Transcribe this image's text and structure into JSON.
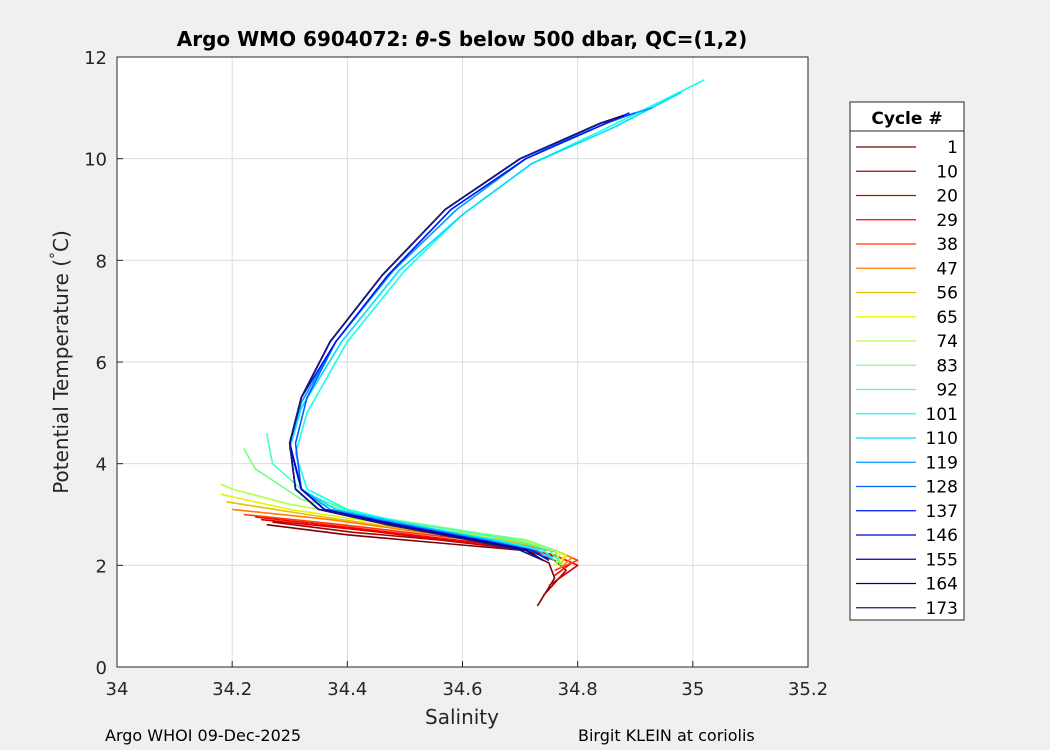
{
  "footer": {
    "left": "Argo WHOI 09-Dec-2025",
    "right": "Birgit KLEIN at coriolis"
  },
  "chart_data": {
    "type": "line",
    "title_prefix": "Argo WMO 6904072: ",
    "title_theta": "θ",
    "title_suffix": "-S below 500 dbar,  QC=(1,2)",
    "xlabel": "Salinity",
    "ylabel_prefix": "Potential Temperature (",
    "ylabel_degree": "°",
    "ylabel_suffix": "C)",
    "xlim": [
      34,
      35.2
    ],
    "ylim": [
      0,
      12
    ],
    "xticks": [
      "34",
      "34.2",
      "34.4",
      "34.6",
      "34.8",
      "35",
      "35.2"
    ],
    "yticks": [
      "0",
      "2",
      "4",
      "6",
      "8",
      "10",
      "12"
    ],
    "grid": true,
    "legend": {
      "title": "Cycle #",
      "position": "outside-right",
      "entries": [
        "1",
        "10",
        "20",
        "29",
        "38",
        "47",
        "56",
        "65",
        "74",
        "83",
        "92",
        "101",
        "110",
        "119",
        "128",
        "137",
        "146",
        "155",
        "164",
        "173"
      ],
      "colors": [
        "#7f0000",
        "#a80000",
        "#d40000",
        "#ff0000",
        "#ff3a00",
        "#ff7d00",
        "#e8c000",
        "#eaf400",
        "#b4ff4c",
        "#7dff7d",
        "#4cffb4",
        "#19ffe4",
        "#00dcff",
        "#009cff",
        "#0060ff",
        "#0018ff",
        "#0000d9",
        "#0000a8",
        "#000080",
        "#1a1a78"
      ]
    },
    "series": [
      {
        "color": "#7f0000",
        "x": [
          34.73,
          34.76,
          34.75,
          34.7,
          34.55,
          34.4,
          34.26
        ],
        "y": [
          1.2,
          1.75,
          2.05,
          2.3,
          2.45,
          2.6,
          2.8
        ]
      },
      {
        "color": "#a80000",
        "x": [
          34.74,
          34.78,
          34.76,
          34.71,
          34.56,
          34.41,
          34.27
        ],
        "y": [
          1.4,
          1.9,
          2.1,
          2.3,
          2.5,
          2.65,
          2.85
        ]
      },
      {
        "color": "#d40000",
        "x": [
          34.75,
          34.8,
          34.77,
          34.71,
          34.57,
          34.42,
          34.25
        ],
        "y": [
          1.6,
          2.0,
          2.15,
          2.3,
          2.5,
          2.7,
          2.9
        ]
      },
      {
        "color": "#ff0000",
        "x": [
          34.76,
          34.79,
          34.76,
          34.7,
          34.55,
          34.4,
          34.24
        ],
        "y": [
          1.8,
          2.05,
          2.2,
          2.35,
          2.55,
          2.75,
          2.95
        ]
      },
      {
        "color": "#ff3a00",
        "x": [
          34.76,
          34.8,
          34.77,
          34.7,
          34.54,
          34.39,
          34.22
        ],
        "y": [
          1.9,
          2.1,
          2.25,
          2.4,
          2.6,
          2.8,
          3.0
        ]
      },
      {
        "color": "#ff7d00",
        "x": [
          34.77,
          34.79,
          34.76,
          34.69,
          34.53,
          34.37,
          34.2
        ],
        "y": [
          1.95,
          2.15,
          2.3,
          2.45,
          2.65,
          2.9,
          3.1
        ]
      },
      {
        "color": "#e8c000",
        "x": [
          34.77,
          34.78,
          34.74,
          34.67,
          34.5,
          34.33,
          34.19
        ],
        "y": [
          2.0,
          2.2,
          2.35,
          2.5,
          2.72,
          3.0,
          3.25
        ]
      },
      {
        "color": "#eaf400",
        "x": [
          34.76,
          34.78,
          34.73,
          34.66,
          34.48,
          34.3,
          34.18
        ],
        "y": [
          2.0,
          2.2,
          2.4,
          2.55,
          2.8,
          3.1,
          3.4
        ]
      },
      {
        "color": "#b4ff4c",
        "x": [
          34.76,
          34.77,
          34.72,
          34.64,
          34.46,
          34.3,
          34.2,
          34.18
        ],
        "y": [
          2.0,
          2.25,
          2.45,
          2.6,
          2.9,
          3.2,
          3.5,
          3.6
        ]
      },
      {
        "color": "#7dff7d",
        "x": [
          34.77,
          34.76,
          34.71,
          34.62,
          34.45,
          34.32,
          34.24,
          34.22
        ],
        "y": [
          2.0,
          2.3,
          2.5,
          2.65,
          2.95,
          3.3,
          3.9,
          4.3
        ]
      },
      {
        "color": "#4cffb4",
        "x": [
          34.77,
          34.75,
          34.69,
          34.58,
          34.42,
          34.33,
          34.27,
          34.26
        ],
        "y": [
          2.05,
          2.3,
          2.5,
          2.7,
          3.0,
          3.4,
          4.0,
          4.6
        ]
      },
      {
        "color": "#19ffe4",
        "x": [
          34.76,
          34.74,
          34.66,
          34.53,
          34.4,
          34.33,
          34.31,
          34.33,
          34.4,
          34.5,
          34.6,
          34.72,
          34.85,
          35.02
        ],
        "y": [
          2.1,
          2.3,
          2.5,
          2.75,
          3.1,
          3.5,
          4.2,
          5.0,
          6.4,
          7.8,
          8.9,
          9.9,
          10.6,
          11.55
        ]
      },
      {
        "color": "#00dcff",
        "x": [
          34.76,
          34.73,
          34.65,
          34.51,
          34.38,
          34.32,
          34.3,
          34.32,
          34.39,
          34.49,
          34.6,
          34.72,
          34.86,
          34.98
        ],
        "y": [
          2.1,
          2.3,
          2.5,
          2.8,
          3.1,
          3.5,
          4.3,
          5.1,
          6.4,
          7.8,
          8.9,
          9.9,
          10.6,
          11.3
        ]
      },
      {
        "color": "#009cff",
        "x": [
          34.75,
          34.72,
          34.64,
          34.5,
          34.37,
          34.32,
          34.3,
          34.32,
          34.38,
          34.48,
          34.59,
          34.71,
          34.84,
          34.93
        ],
        "y": [
          2.1,
          2.3,
          2.5,
          2.8,
          3.1,
          3.5,
          4.4,
          5.2,
          6.4,
          7.8,
          9.0,
          10.0,
          10.7,
          11.0
        ]
      },
      {
        "color": "#0060ff",
        "x": [
          34.75,
          34.72,
          34.63,
          34.49,
          34.36,
          34.32,
          34.31,
          34.33,
          34.38,
          34.47,
          34.58,
          34.71,
          34.85,
          34.9
        ],
        "y": [
          2.1,
          2.3,
          2.5,
          2.8,
          3.1,
          3.5,
          4.4,
          5.3,
          6.4,
          7.7,
          9.0,
          10.0,
          10.7,
          10.9
        ]
      },
      {
        "color": "#0018ff",
        "x": [
          34.75,
          34.72,
          34.63,
          34.49,
          34.36,
          34.32,
          34.3,
          34.32,
          34.38,
          34.47,
          34.58,
          34.71,
          34.85,
          34.89
        ],
        "y": [
          2.1,
          2.3,
          2.5,
          2.8,
          3.1,
          3.5,
          4.4,
          5.3,
          6.4,
          7.7,
          9.0,
          10.0,
          10.7,
          10.9
        ]
      },
      {
        "color": "#0000d9",
        "x": [
          34.74,
          34.71,
          34.62,
          34.48,
          34.36,
          34.32,
          34.3,
          34.32,
          34.37,
          34.46,
          34.57,
          34.7,
          34.84,
          34.88
        ],
        "y": [
          2.1,
          2.3,
          2.5,
          2.8,
          3.1,
          3.5,
          4.4,
          5.3,
          6.4,
          7.7,
          9.0,
          10.0,
          10.7,
          10.85
        ]
      },
      {
        "color": "#0000a8",
        "x": [
          34.74,
          34.71,
          34.62,
          34.48,
          34.35,
          34.31,
          34.3,
          34.32,
          34.37,
          34.46,
          34.57,
          34.7,
          34.84,
          34.88
        ],
        "y": [
          2.1,
          2.3,
          2.5,
          2.8,
          3.1,
          3.5,
          4.4,
          5.3,
          6.4,
          7.7,
          9.0,
          10.0,
          10.7,
          10.85
        ]
      },
      {
        "color": "#000080",
        "x": [
          34.74,
          34.71,
          34.62,
          34.47,
          34.35,
          34.31,
          34.3,
          34.32,
          34.37,
          34.46,
          34.57,
          34.7,
          34.84,
          34.88
        ],
        "y": [
          2.1,
          2.3,
          2.5,
          2.8,
          3.1,
          3.5,
          4.4,
          5.3,
          6.4,
          7.7,
          9.0,
          10.0,
          10.7,
          10.85
        ]
      },
      {
        "color": "#1a1a78",
        "x": [
          34.74,
          34.7,
          34.61,
          34.47,
          34.35,
          34.31,
          34.3,
          34.32,
          34.37,
          34.46,
          34.57,
          34.7,
          34.84,
          34.87
        ],
        "y": [
          2.1,
          2.3,
          2.5,
          2.8,
          3.1,
          3.5,
          4.4,
          5.3,
          6.4,
          7.7,
          9.0,
          10.0,
          10.7,
          10.8
        ]
      }
    ]
  }
}
